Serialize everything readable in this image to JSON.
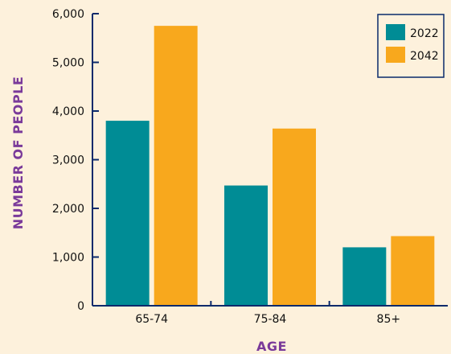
{
  "chart_data": {
    "type": "bar",
    "categories": [
      "65-74",
      "75-84",
      "85+"
    ],
    "series": [
      {
        "name": "2022",
        "values": [
          3800,
          2470,
          1200
        ],
        "color": "#008c95"
      },
      {
        "name": "2042",
        "values": [
          5750,
          3640,
          1430
        ],
        "color": "#f8a81d"
      }
    ],
    "xlabel": "AGE",
    "ylabel": "NUMBER OF PEOPLE",
    "ylim": [
      0,
      6000
    ],
    "yticks": [
      0,
      1000,
      2000,
      3000,
      4000,
      5000,
      6000
    ],
    "ytick_labels": [
      "0",
      "1,000",
      "2,000",
      "3,000",
      "4,000",
      "5,000",
      "6,000"
    ],
    "legend_position": "top-right",
    "grid": false,
    "axis_color": "#0a2a6b",
    "title_color": "#7a3a9a",
    "background": "#fdf1dc"
  }
}
